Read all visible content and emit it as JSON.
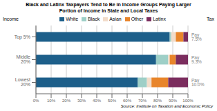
{
  "chart_data": {
    "type": "bar",
    "orientation": "horizontal",
    "stacked": true,
    "title": "Black and Latinx Taxpayers Tend to Be in Income Groups Paying Larger\nPortion of Income in State and Local Taxes",
    "ylabel": "Income",
    "categories": [
      "Top 5%",
      "Middle 20%",
      "Lowest 20%"
    ],
    "series": [
      {
        "name": "White",
        "color": "#1d5f8a",
        "values": [
          88,
          79,
          67
        ]
      },
      {
        "name": "Black",
        "color": "#9ecfc7",
        "values": [
          1,
          8,
          6
        ]
      },
      {
        "name": "Asian",
        "color": "#f2dcca",
        "values": [
          3,
          1,
          3
        ]
      },
      {
        "name": "Other",
        "color": "#e8852b",
        "values": [
          5,
          4,
          11
        ]
      },
      {
        "name": "Latinx",
        "color": "#7b2d5e",
        "values": [
          3,
          8,
          13
        ]
      }
    ],
    "xlim": [
      0,
      100
    ],
    "xticks": [
      {
        "value": 0,
        "label": "0%"
      },
      {
        "value": 10,
        "label": "10%"
      },
      {
        "value": 20,
        "label": "20%"
      },
      {
        "value": 30,
        "label": "30%"
      },
      {
        "value": 40,
        "label": "40%"
      },
      {
        "value": 50,
        "label": "50%"
      },
      {
        "value": 60,
        "label": "60%"
      },
      {
        "value": 70,
        "label": "70%"
      },
      {
        "value": 80,
        "label": "80%"
      },
      {
        "value": 90,
        "label": "90%"
      },
      {
        "value": 100,
        "label": "100%"
      }
    ],
    "grid": true,
    "legend": "top",
    "annotations": [
      {
        "text": "Tax"
      },
      {
        "text": "Pay 7.5%",
        "category": "Top 5%"
      },
      {
        "text": "Pay 9.3%",
        "category": "Middle 20%"
      },
      {
        "text": "Pay 10.0%",
        "category": "Lowest 20%"
      }
    ],
    "source": "Source: Institute on Taxation and Economic Policy"
  }
}
